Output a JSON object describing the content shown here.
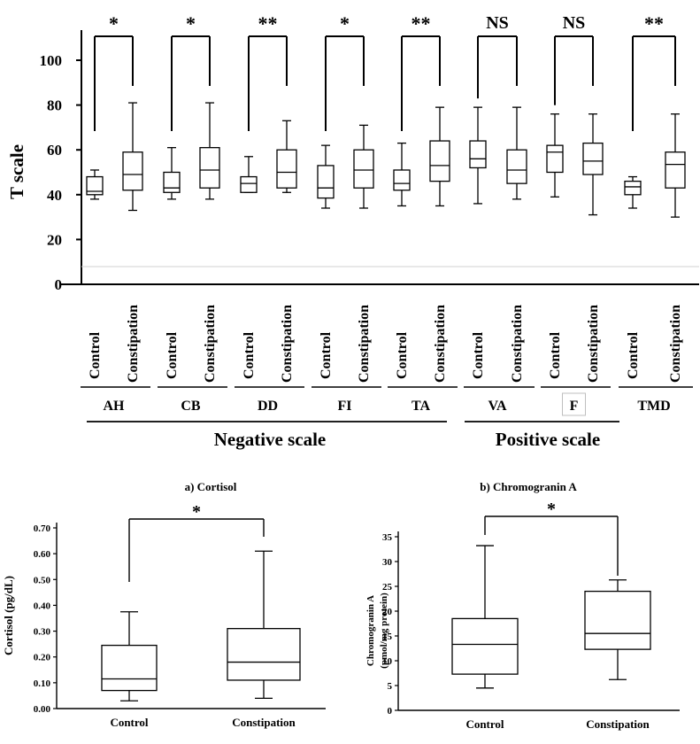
{
  "chart_data": [
    {
      "type": "box",
      "title": "",
      "ylabel": "T scale",
      "ylim": [
        0,
        100
      ],
      "yticks": [
        "0",
        "20",
        "40",
        "60",
        "80",
        "100"
      ],
      "subgroup_labels": [
        "Control",
        "Constipation"
      ],
      "groups": [
        {
          "name": "AH",
          "sig": "*",
          "boxes": [
            {
              "min": 38,
              "q1": 40,
              "median": 41.5,
              "q3": 48,
              "max": 51
            },
            {
              "min": 33,
              "q1": 42,
              "median": 49,
              "q3": 59,
              "max": 81
            }
          ]
        },
        {
          "name": "CB",
          "sig": "*",
          "boxes": [
            {
              "min": 38,
              "q1": 41,
              "median": 43,
              "q3": 50,
              "max": 61
            },
            {
              "min": 38,
              "q1": 43,
              "median": 51,
              "q3": 61,
              "max": 81
            }
          ]
        },
        {
          "name": "DD",
          "sig": "**",
          "boxes": [
            {
              "min": 41,
              "q1": 41,
              "median": 45,
              "q3": 48,
              "max": 57
            },
            {
              "min": 41,
              "q1": 43,
              "median": 50,
              "q3": 60,
              "max": 73
            }
          ]
        },
        {
          "name": "FI",
          "sig": "*",
          "boxes": [
            {
              "min": 34,
              "q1": 38.5,
              "median": 43,
              "q3": 53,
              "max": 62
            },
            {
              "min": 34,
              "q1": 43,
              "median": 51,
              "q3": 60,
              "max": 71
            }
          ]
        },
        {
          "name": "TA",
          "sig": "**",
          "boxes": [
            {
              "min": 35,
              "q1": 42,
              "median": 45,
              "q3": 51,
              "max": 63
            },
            {
              "min": 35,
              "q1": 46,
              "median": 53,
              "q3": 64,
              "max": 79
            }
          ]
        },
        {
          "name": "VA",
          "sig": "NS",
          "boxes": [
            {
              "min": 36,
              "q1": 52,
              "median": 56,
              "q3": 64,
              "max": 79
            },
            {
              "min": 38,
              "q1": 45,
              "median": 51,
              "q3": 60,
              "max": 79
            }
          ]
        },
        {
          "name": "F",
          "sig": "NS",
          "boxes": [
            {
              "min": 39,
              "q1": 50,
              "median": 59,
              "q3": 62,
              "max": 76
            },
            {
              "min": 31,
              "q1": 49,
              "median": 55,
              "q3": 63,
              "max": 76
            }
          ]
        },
        {
          "name": "TMD",
          "sig": "**",
          "boxes": [
            {
              "min": 34,
              "q1": 40,
              "median": 43.5,
              "q3": 46,
              "max": 48
            },
            {
              "min": 30,
              "q1": 43,
              "median": 53.5,
              "q3": 59,
              "max": 76
            }
          ]
        }
      ],
      "scale_groups": [
        {
          "label": "Negative scale",
          "groups": [
            "AH",
            "CB",
            "DD",
            "FI",
            "TA"
          ]
        },
        {
          "label": "Positive scale",
          "groups": [
            "VA",
            "F",
            "TMD"
          ]
        }
      ]
    },
    {
      "type": "box",
      "title": "a) Cortisol",
      "ylabel": "Cortisol (pg/dL)",
      "ylim": [
        0,
        0.7
      ],
      "yticks": [
        "0.00",
        "0.10",
        "0.20",
        "0.30",
        "0.40",
        "0.50",
        "0.60",
        "0.70"
      ],
      "categories": [
        "Control",
        "Constipation"
      ],
      "sig": "*",
      "boxes": [
        {
          "min": 0.03,
          "q1": 0.07,
          "median": 0.115,
          "q3": 0.245,
          "max": 0.375
        },
        {
          "min": 0.04,
          "q1": 0.11,
          "median": 0.18,
          "q3": 0.31,
          "max": 0.61
        }
      ]
    },
    {
      "type": "box",
      "title": "b) Chromogranin A",
      "ylabel": "Chromogranin A",
      "ylabel2": "(pmol/mg protein)",
      "ylim": [
        0,
        35
      ],
      "yticks": [
        "0",
        "5",
        "10",
        "15",
        "20",
        "25",
        "30",
        "35"
      ],
      "categories": [
        "Control",
        "Constipation"
      ],
      "sig": "*",
      "boxes": [
        {
          "min": 4.5,
          "q1": 7.3,
          "median": 13.3,
          "q3": 18.5,
          "max": 33.2
        },
        {
          "min": 6.2,
          "q1": 12.3,
          "median": 15.5,
          "q3": 24,
          "max": 26.3
        }
      ]
    }
  ]
}
